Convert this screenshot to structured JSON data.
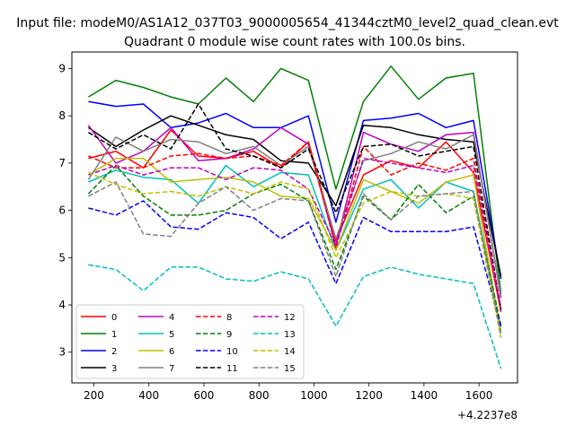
{
  "figure": {
    "suptitle": "Input file: modeM0/AS1A12_037T03_9000005654_41344cztM0_level2_quad_clean.evt",
    "title": "Quadrant 0 module wise count rates with 100.0s bins.",
    "offset_text": "+4.2237e8"
  },
  "chart_data": {
    "type": "line",
    "title": "Quadrant 0 module wise count rates with 100.0s bins.",
    "xlabel": "",
    "ylabel": "",
    "x_offset": 422370000,
    "xlim": [
      120,
      1740
    ],
    "ylim": [
      2.35,
      9.35
    ],
    "xticks": [
      200,
      400,
      600,
      800,
      1000,
      1200,
      1400,
      1600
    ],
    "yticks": [
      3,
      4,
      5,
      6,
      7,
      8,
      9
    ],
    "grid": false,
    "legend": {
      "placement": "lower-left",
      "columns": 4
    },
    "x": [
      180,
      280,
      380,
      480,
      580,
      680,
      780,
      880,
      980,
      1080,
      1180,
      1280,
      1380,
      1480,
      1580,
      1680
    ],
    "series": [
      {
        "name": "0",
        "color": "#ff0000",
        "dash": "solid",
        "values": [
          7.1,
          7.25,
          6.9,
          7.7,
          7.15,
          7.1,
          7.25,
          6.9,
          7.45,
          5.35,
          6.75,
          7.05,
          6.9,
          7.45,
          6.8,
          3.85
        ]
      },
      {
        "name": "1",
        "color": "#008000",
        "dash": "solid",
        "values": [
          8.4,
          8.75,
          8.6,
          8.4,
          8.25,
          8.8,
          8.3,
          9.0,
          8.75,
          6.45,
          8.3,
          9.05,
          8.35,
          8.8,
          8.9,
          4.25
        ]
      },
      {
        "name": "2",
        "color": "#0000ff",
        "dash": "solid",
        "values": [
          8.3,
          8.2,
          8.25,
          7.75,
          7.85,
          8.05,
          7.75,
          7.75,
          8.0,
          5.75,
          7.9,
          7.95,
          8.05,
          7.75,
          7.9,
          4.55
        ]
      },
      {
        "name": "3",
        "color": "#000000",
        "dash": "solid",
        "values": [
          7.75,
          7.35,
          7.7,
          8.0,
          7.8,
          7.6,
          7.5,
          7.05,
          7.0,
          6.1,
          7.8,
          7.75,
          7.6,
          7.5,
          7.45,
          4.6
        ]
      },
      {
        "name": "4",
        "color": "#bf00bf",
        "dash": "solid",
        "values": [
          7.8,
          7.0,
          7.25,
          7.75,
          7.05,
          7.1,
          7.3,
          7.75,
          7.4,
          5.25,
          7.65,
          7.4,
          7.25,
          7.6,
          7.65,
          4.15
        ]
      },
      {
        "name": "5",
        "color": "#00bfbf",
        "dash": "solid",
        "values": [
          6.6,
          6.85,
          6.7,
          6.65,
          6.15,
          6.95,
          6.5,
          6.8,
          6.75,
          5.15,
          6.45,
          6.65,
          6.05,
          6.6,
          6.4,
          3.45
        ]
      },
      {
        "name": "6",
        "color": "#bfbf00",
        "dash": "solid",
        "values": [
          6.75,
          7.1,
          7.1,
          6.6,
          6.65,
          6.7,
          6.6,
          6.3,
          6.25,
          5.15,
          6.65,
          6.4,
          6.15,
          6.6,
          6.75,
          3.4
        ]
      },
      {
        "name": "7",
        "color": "#808080",
        "dash": "solid",
        "values": [
          6.65,
          7.55,
          7.25,
          7.5,
          7.45,
          7.2,
          7.35,
          6.95,
          7.35,
          5.4,
          7.05,
          7.2,
          7.45,
          7.3,
          7.6,
          4.2
        ]
      },
      {
        "name": "8",
        "color": "#ff0000",
        "dash": "dashed",
        "values": [
          7.15,
          6.9,
          6.9,
          7.15,
          7.2,
          7.1,
          7.15,
          6.95,
          7.45,
          5.2,
          7.35,
          6.75,
          7.0,
          6.85,
          7.1,
          3.9
        ]
      },
      {
        "name": "9",
        "color": "#008000",
        "dash": "dashed",
        "values": [
          6.35,
          6.95,
          6.3,
          5.9,
          5.9,
          6.0,
          6.35,
          6.55,
          6.2,
          4.75,
          6.3,
          5.8,
          6.55,
          5.95,
          6.3,
          3.55
        ]
      },
      {
        "name": "10",
        "color": "#0000ff",
        "dash": "dashed",
        "values": [
          6.05,
          5.9,
          6.2,
          5.65,
          5.6,
          5.95,
          5.85,
          5.4,
          5.75,
          4.45,
          5.85,
          5.55,
          5.55,
          5.55,
          5.65,
          3.55
        ]
      },
      {
        "name": "11",
        "color": "#000000",
        "dash": "dashed",
        "values": [
          7.65,
          7.3,
          7.6,
          7.3,
          8.25,
          7.3,
          7.15,
          6.9,
          7.3,
          5.95,
          7.35,
          7.4,
          7.15,
          7.25,
          7.35,
          3.9
        ]
      },
      {
        "name": "12",
        "color": "#bf00bf",
        "dash": "dashed",
        "values": [
          6.75,
          6.95,
          6.75,
          6.9,
          6.9,
          6.65,
          6.9,
          6.85,
          6.45,
          5.25,
          7.1,
          7.0,
          6.9,
          6.8,
          6.95,
          3.95
        ]
      },
      {
        "name": "13",
        "color": "#00bfbf",
        "dash": "dashed",
        "values": [
          4.85,
          4.75,
          4.3,
          4.8,
          4.8,
          4.55,
          4.5,
          4.7,
          4.55,
          3.55,
          4.6,
          4.8,
          4.65,
          4.55,
          4.45,
          2.65
        ]
      },
      {
        "name": "14",
        "color": "#bfbf00",
        "dash": "dashed",
        "values": [
          6.8,
          6.55,
          6.35,
          6.4,
          6.3,
          6.5,
          6.35,
          6.6,
          6.45,
          5.0,
          6.15,
          6.4,
          6.3,
          6.35,
          6.25,
          3.3
        ]
      },
      {
        "name": "15",
        "color": "#808080",
        "dash": "dashed",
        "values": [
          6.3,
          6.6,
          5.5,
          5.45,
          6.15,
          6.5,
          6.0,
          6.25,
          6.2,
          4.6,
          6.35,
          5.8,
          6.3,
          6.35,
          6.4,
          3.35
        ]
      }
    ]
  }
}
